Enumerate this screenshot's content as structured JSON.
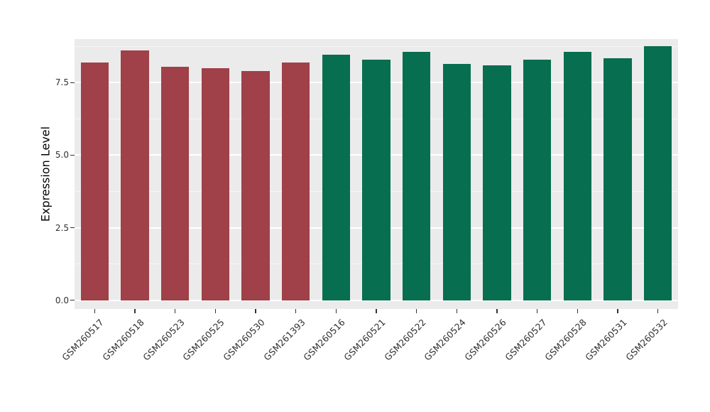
{
  "chart_data": {
    "type": "bar",
    "title": "",
    "xlabel": "",
    "ylabel": "Expression Level",
    "categories": [
      "GSM260517",
      "GSM260518",
      "GSM260523",
      "GSM260525",
      "GSM260530",
      "GSM261393",
      "GSM260516",
      "GSM260521",
      "GSM260522",
      "GSM260524",
      "GSM260526",
      "GSM260527",
      "GSM260528",
      "GSM260531",
      "GSM260532"
    ],
    "values": [
      8.2,
      8.6,
      8.05,
      8.0,
      7.9,
      8.2,
      8.45,
      8.3,
      8.55,
      8.15,
      8.1,
      8.3,
      8.55,
      8.35,
      8.75
    ],
    "bar_colors": [
      "#A04048",
      "#A04048",
      "#A04048",
      "#A04048",
      "#A04048",
      "#A04048",
      "#076E50",
      "#076E50",
      "#076E50",
      "#076E50",
      "#076E50",
      "#076E50",
      "#076E50",
      "#076E50",
      "#076E50"
    ],
    "yticks": [
      0.0,
      2.5,
      5.0,
      7.5
    ],
    "ytick_labels": [
      "0.0",
      "2.5",
      "5.0",
      "7.5"
    ],
    "minor_ticks": [
      1.25,
      3.75,
      6.25,
      8.75
    ],
    "ylim": [
      -0.3,
      9.0
    ],
    "bar_width_fraction": 0.7,
    "panel_bg": "#EBEBEB",
    "grid_color": "#FFFFFF",
    "legend": "none",
    "group_colors": {
      "maroon": "#A04048",
      "green": "#076E50"
    }
  }
}
